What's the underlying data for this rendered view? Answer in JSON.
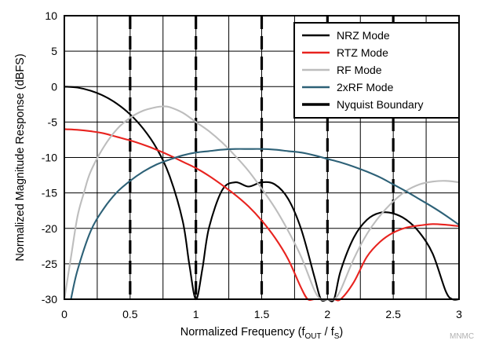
{
  "chart_data": {
    "type": "line",
    "title": "",
    "xlabel": "Normalized Frequency (f",
    "xlabel_sub1": "OUT",
    "xlabel_mid": " / f",
    "xlabel_sub2": "S",
    "xlabel_end": ")",
    "ylabel": "Normalized Magnitude Response (dBFS)",
    "xlim": [
      0,
      3
    ],
    "ylim": [
      -30,
      10
    ],
    "x_ticks": [
      0,
      0.5,
      1,
      1.5,
      2,
      2.5,
      3
    ],
    "x_tick_labels": [
      "0",
      "0.5",
      "1",
      "1.5",
      "2",
      "2.5",
      "3"
    ],
    "x_minor_step": 0.25,
    "y_ticks": [
      10,
      5,
      0,
      -5,
      -10,
      -15,
      -20,
      -25,
      -30
    ],
    "y_tick_labels": [
      "10",
      "5",
      "0",
      "-5",
      "-10",
      "-15",
      "-20",
      "-25",
      "-30"
    ],
    "grid": true,
    "legend_position": "top-right",
    "series": [
      {
        "name": "NRZ Mode",
        "color": "#000000",
        "x": [
          0,
          0.1,
          0.2,
          0.3,
          0.4,
          0.5,
          0.6,
          0.7,
          0.8,
          0.9,
          0.95,
          1.0,
          1.05,
          1.1,
          1.2,
          1.3,
          1.4,
          1.5,
          1.6,
          1.7,
          1.8,
          1.9,
          1.95,
          2.0,
          2.05,
          2.1,
          2.2,
          2.3,
          2.4,
          2.5,
          2.6,
          2.7,
          2.8,
          2.9,
          2.95,
          3.0
        ],
        "y": [
          0,
          -0.14,
          -0.58,
          -1.32,
          -2.42,
          -3.92,
          -5.94,
          -8.67,
          -12.6,
          -19.0,
          -25.1,
          -30,
          -25.6,
          -19.9,
          -14.6,
          -13.5,
          -14.1,
          -13.5,
          -13.8,
          -15.8,
          -20.1,
          -26.8,
          -30,
          -30,
          -30,
          -26.0,
          -21.3,
          -18.8,
          -17.8,
          -17.9,
          -18.8,
          -20.6,
          -23.6,
          -28.9,
          -30,
          -30
        ]
      },
      {
        "name": "RTZ Mode",
        "color": "#e8231f",
        "x": [
          0,
          0.1,
          0.2,
          0.3,
          0.4,
          0.5,
          0.6,
          0.7,
          0.8,
          0.9,
          1.0,
          1.1,
          1.2,
          1.3,
          1.4,
          1.5,
          1.6,
          1.7,
          1.8,
          1.85,
          1.9,
          1.95,
          2.0,
          2.05,
          2.1,
          2.2,
          2.3,
          2.4,
          2.5,
          2.6,
          2.7,
          2.8,
          2.9,
          3.0
        ],
        "y": [
          -6.0,
          -6.1,
          -6.3,
          -6.6,
          -7.1,
          -7.6,
          -8.2,
          -8.9,
          -9.7,
          -10.6,
          -11.5,
          -12.6,
          -13.9,
          -15.3,
          -16.9,
          -18.9,
          -21.3,
          -24.3,
          -28.4,
          -30,
          -30,
          -30,
          -30,
          -30,
          -30,
          -27.6,
          -24.0,
          -21.9,
          -20.6,
          -19.9,
          -19.6,
          -19.4,
          -19.5,
          -19.7
        ]
      },
      {
        "name": "RF Mode",
        "color": "#bdbdbd",
        "x": [
          0,
          0.05,
          0.1,
          0.15,
          0.2,
          0.3,
          0.4,
          0.5,
          0.6,
          0.7,
          0.75,
          0.8,
          0.9,
          1.0,
          1.1,
          1.2,
          1.3,
          1.4,
          1.5,
          1.6,
          1.7,
          1.8,
          1.9,
          1.95,
          2.0,
          2.05,
          2.1,
          2.2,
          2.3,
          2.4,
          2.5,
          2.6,
          2.7,
          2.8,
          2.9,
          3.0
        ],
        "y": [
          -30,
          -24.1,
          -18.3,
          -14.9,
          -12.0,
          -8.5,
          -6.0,
          -4.4,
          -3.4,
          -2.9,
          -2.8,
          -2.9,
          -3.7,
          -5.0,
          -6.3,
          -7.9,
          -9.8,
          -11.9,
          -14.4,
          -17.1,
          -20.3,
          -24.0,
          -28.7,
          -30,
          -30,
          -30,
          -28.7,
          -24.3,
          -20.8,
          -18.2,
          -16.2,
          -14.7,
          -13.8,
          -13.4,
          -13.3,
          -13.5
        ]
      },
      {
        "name": "2xRF Mode",
        "color": "#2d6177",
        "x": [
          0.05,
          0.1,
          0.2,
          0.3,
          0.4,
          0.5,
          0.6,
          0.7,
          0.8,
          0.9,
          1.0,
          1.1,
          1.2,
          1.3,
          1.4,
          1.5,
          1.6,
          1.7,
          1.8,
          1.9,
          2.0,
          2.1,
          2.2,
          2.3,
          2.4,
          2.5,
          2.6,
          2.7,
          2.8,
          2.9,
          3.0
        ],
        "y": [
          -30,
          -25.9,
          -20.4,
          -17.2,
          -14.9,
          -13.3,
          -12.0,
          -11.0,
          -10.3,
          -9.7,
          -9.3,
          -9.1,
          -8.9,
          -8.8,
          -8.8,
          -8.8,
          -8.9,
          -9.1,
          -9.3,
          -9.7,
          -10.2,
          -10.7,
          -11.3,
          -12.0,
          -12.8,
          -13.8,
          -14.8,
          -15.9,
          -17.0,
          -18.2,
          -19.5
        ]
      },
      {
        "name": "Nyquist Boundary",
        "color": "#000000",
        "dashed": true,
        "x_positions": [
          0.5,
          1.0,
          1.5,
          2.0,
          2.5
        ]
      }
    ]
  },
  "watermark": "MNMC"
}
